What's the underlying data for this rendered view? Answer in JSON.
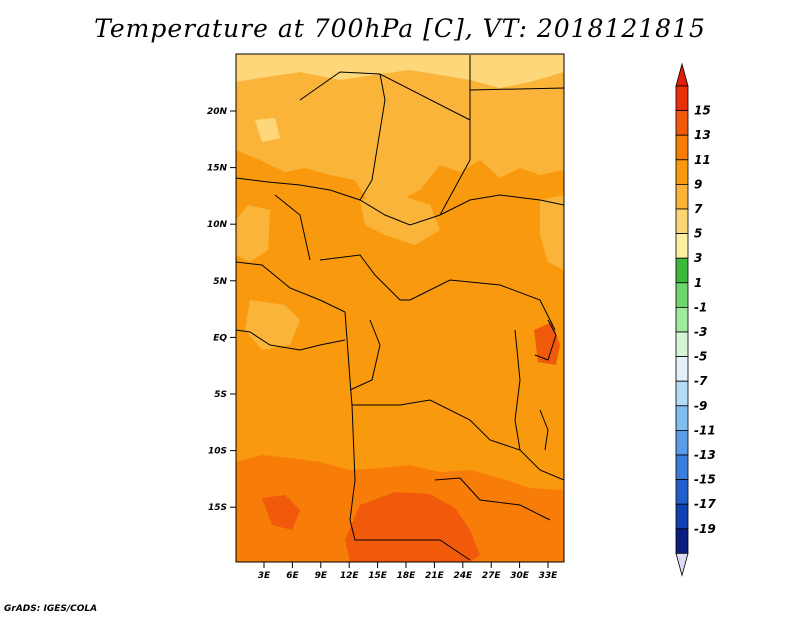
{
  "title": "Temperature at 700hPa [C], VT: 2018121815",
  "credit": "GrADS: IGES/COLA",
  "lat_labels": [
    "20N",
    "15N",
    "10N",
    "5N",
    "EQ",
    "5S",
    "10S",
    "15S"
  ],
  "lon_labels": [
    "3E",
    "6E",
    "9E",
    "12E",
    "15E",
    "18E",
    "21E",
    "24E",
    "27E",
    "30E",
    "33E"
  ],
  "colorbar": {
    "labels": [
      "15",
      "13",
      "11",
      "9",
      "7",
      "5",
      "3",
      "1",
      "-1",
      "-3",
      "-5",
      "-7",
      "-9",
      "-11",
      "-13",
      "-15",
      "-17",
      "-19"
    ],
    "colors": [
      "#e8300a",
      "#f05a0a",
      "#f77d08",
      "#f99a0e",
      "#fbb43a",
      "#fcd575",
      "#fdf0a2",
      "#3cb83c",
      "#6ed46e",
      "#a0eaa0",
      "#d5f5d5",
      "#e3f1fb",
      "#b4dcf7",
      "#82bdef",
      "#5a9ce5",
      "#3b7ddd",
      "#235fca",
      "#1140b0",
      "#0b1e80"
    ],
    "top_color": "#e01e0e",
    "bottom_color": "#dcdcf5"
  },
  "colors": {
    "c5": "#fdd77a",
    "c7": "#fbb43a",
    "c9": "#f99a0e",
    "c11": "#f77d08",
    "c13": "#f05a0a"
  }
}
